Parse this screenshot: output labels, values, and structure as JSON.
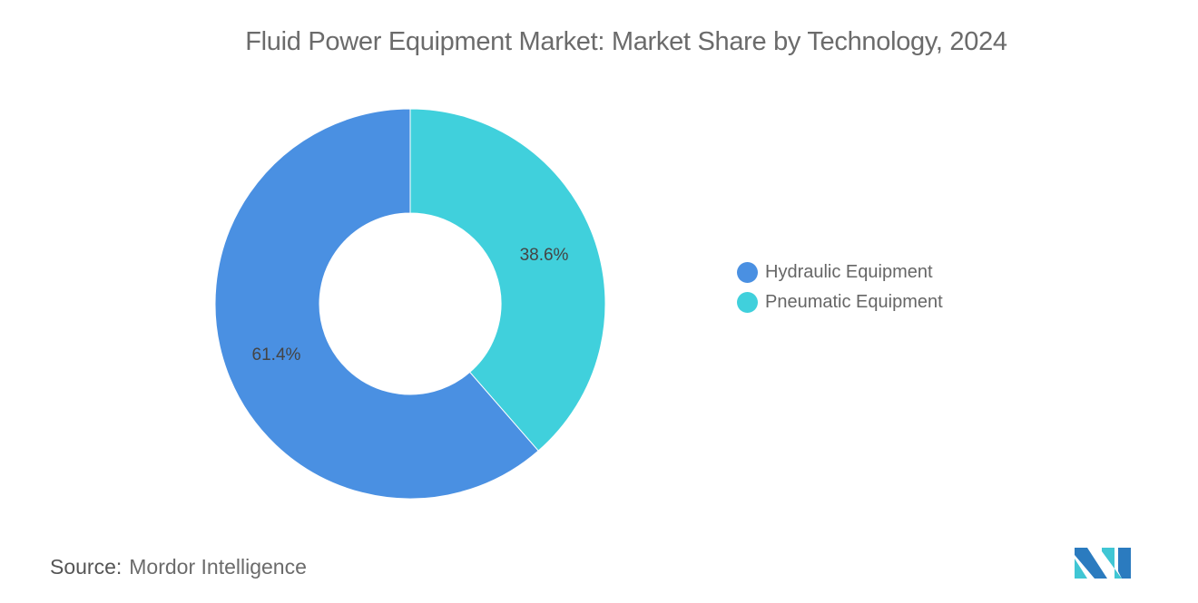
{
  "chart_data": {
    "type": "pie",
    "donut": true,
    "title": "Fluid Power Equipment Market: Market Share by Technology, 2024",
    "categories": [
      "Hydraulic Equipment",
      "Pneumatic Equipment"
    ],
    "values": [
      61.4,
      38.6
    ],
    "data_labels": [
      "61.4%",
      "38.6%"
    ],
    "colors": [
      "#4a90e2",
      "#40d0dc"
    ],
    "legend_position": "right"
  },
  "source": {
    "label": "Source:",
    "value": "Mordor Intelligence"
  },
  "logo": {
    "text": "Mordor Intelligence",
    "colors": [
      "#2b7bbf",
      "#40c6d4"
    ]
  }
}
